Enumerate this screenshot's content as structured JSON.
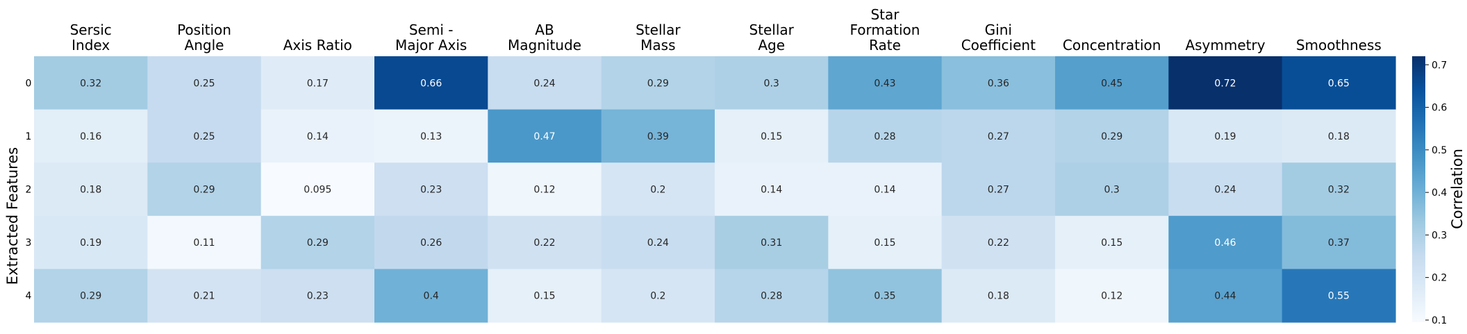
{
  "chart_data": {
    "type": "heatmap",
    "columns": [
      "Sersic\nIndex",
      "Position\nAngle",
      "Axis Ratio",
      "Semi -\nMajor Axis",
      "AB\nMagnitude",
      "Stellar\nMass",
      "Stellar\nAge",
      "Star\nFormation\nRate",
      "Gini\nCoefficient",
      "Concentration",
      "Asymmetry",
      "Smoothness"
    ],
    "rows": [
      "0",
      "1",
      "2",
      "3",
      "4"
    ],
    "values": [
      [
        0.32,
        0.25,
        0.17,
        0.66,
        0.24,
        0.29,
        0.3,
        0.43,
        0.36,
        0.45,
        0.72,
        0.65
      ],
      [
        0.16,
        0.25,
        0.14,
        0.13,
        0.47,
        0.39,
        0.15,
        0.28,
        0.27,
        0.29,
        0.19,
        0.18
      ],
      [
        0.18,
        0.29,
        0.095,
        0.23,
        0.12,
        0.2,
        0.14,
        0.14,
        0.27,
        0.3,
        0.24,
        0.32
      ],
      [
        0.19,
        0.11,
        0.29,
        0.26,
        0.22,
        0.24,
        0.31,
        0.15,
        0.22,
        0.15,
        0.46,
        0.37
      ],
      [
        0.29,
        0.21,
        0.23,
        0.4,
        0.15,
        0.2,
        0.28,
        0.35,
        0.18,
        0.12,
        0.44,
        0.55
      ]
    ],
    "value_labels": [
      [
        "0.32",
        "0.25",
        "0.17",
        "0.66",
        "0.24",
        "0.29",
        "0.3",
        "0.43",
        "0.36",
        "0.45",
        "0.72",
        "0.65"
      ],
      [
        "0.16",
        "0.25",
        "0.14",
        "0.13",
        "0.47",
        "0.39",
        "0.15",
        "0.28",
        "0.27",
        "0.29",
        "0.19",
        "0.18"
      ],
      [
        "0.18",
        "0.29",
        "0.095",
        "0.23",
        "0.12",
        "0.2",
        "0.14",
        "0.14",
        "0.27",
        "0.3",
        "0.24",
        "0.32"
      ],
      [
        "0.19",
        "0.11",
        "0.29",
        "0.26",
        "0.22",
        "0.24",
        "0.31",
        "0.15",
        "0.22",
        "0.15",
        "0.46",
        "0.37"
      ],
      [
        "0.29",
        "0.21",
        "0.23",
        "0.4",
        "0.15",
        "0.2",
        "0.28",
        "0.35",
        "0.18",
        "0.12",
        "0.44",
        "0.55"
      ]
    ],
    "ylabel": "Extracted Features",
    "colorbar": {
      "label": "Correlation",
      "range": [
        0.095,
        0.72
      ],
      "ticks": [
        0.1,
        0.2,
        0.3,
        0.4,
        0.5,
        0.6,
        0.7
      ],
      "tick_labels": [
        "0.1",
        "0.2",
        "0.3",
        "0.4",
        "0.5",
        "0.6",
        "0.7"
      ],
      "colormap": "Blues"
    }
  }
}
